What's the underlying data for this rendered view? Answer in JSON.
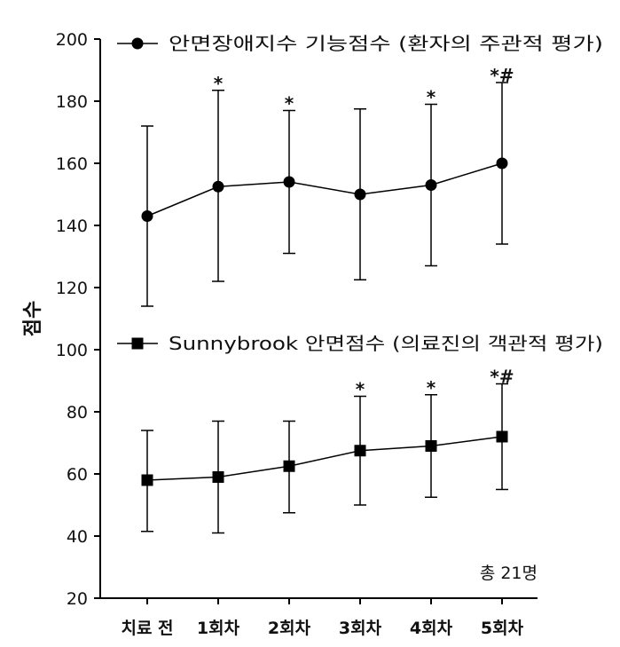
{
  "chart_data": {
    "type": "line",
    "ylabel": "점수",
    "ylim": [
      20,
      200
    ],
    "yticks": [
      20,
      40,
      60,
      80,
      100,
      120,
      140,
      160,
      180,
      200
    ],
    "categories": [
      "치료 전",
      "1회차",
      "2회차",
      "3회차",
      "4회차",
      "5회차"
    ],
    "grid": false,
    "legend_position": "top-left (one entry above each series)",
    "note": "총 21명",
    "series": [
      {
        "name": "안면장애지수 기능점수 (환자의 주관적 평가)",
        "marker": "circle",
        "values": [
          143,
          152.5,
          154,
          150,
          153,
          160
        ],
        "err_upper": [
          172,
          183.5,
          177,
          177.5,
          179,
          186
        ],
        "err_lower": [
          114,
          122,
          131,
          122.5,
          127,
          134
        ],
        "annotations": [
          "",
          "*",
          "*",
          "",
          "*",
          "*#"
        ]
      },
      {
        "name": "Sunnybrook 안면점수 (의료진의 객관적 평가)",
        "marker": "square",
        "values": [
          58,
          59,
          62.5,
          67.5,
          69,
          72
        ],
        "err_upper": [
          74,
          77,
          77,
          85,
          85.5,
          89
        ],
        "err_lower": [
          41.5,
          41,
          47.5,
          50,
          52.5,
          55
        ],
        "annotations": [
          "",
          "",
          "",
          "*",
          "*",
          "*#"
        ]
      }
    ]
  }
}
